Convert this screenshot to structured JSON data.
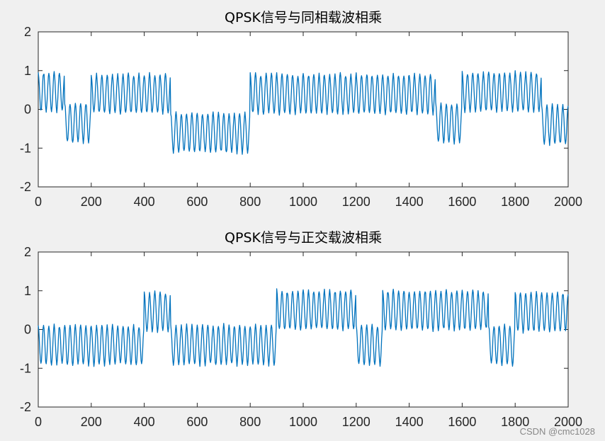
{
  "chart_data": [
    {
      "type": "line",
      "title": "QPSK信号与同相载波相乘",
      "xlabel": "",
      "ylabel": "",
      "xlim": [
        0,
        2000
      ],
      "ylim": [
        -2,
        2
      ],
      "xticks": [
        0,
        200,
        400,
        600,
        800,
        1000,
        1200,
        1400,
        1600,
        1800,
        2000
      ],
      "yticks": [
        -2,
        -1,
        0,
        1,
        2
      ],
      "grid": false,
      "series_color": "#0072BD",
      "oscillation_period_samples": 20,
      "oscillation_amplitude": 0.5,
      "segments": [
        {
          "x_start": 0,
          "x_end": 100,
          "level": 0.45
        },
        {
          "x_start": 100,
          "x_end": 200,
          "level": -0.35
        },
        {
          "x_start": 200,
          "x_end": 500,
          "level": 0.4
        },
        {
          "x_start": 500,
          "x_end": 800,
          "level": -0.6
        },
        {
          "x_start": 800,
          "x_end": 1500,
          "level": 0.4
        },
        {
          "x_start": 1500,
          "x_end": 1600,
          "level": -0.35
        },
        {
          "x_start": 1600,
          "x_end": 1900,
          "level": 0.45
        },
        {
          "x_start": 1900,
          "x_end": 2000,
          "level": -0.4
        }
      ]
    },
    {
      "type": "line",
      "title": "QPSK信号与正交载波相乘",
      "xlabel": "",
      "ylabel": "",
      "xlim": [
        0,
        2000
      ],
      "ylim": [
        -2,
        2
      ],
      "xticks": [
        0,
        200,
        400,
        600,
        800,
        1000,
        1200,
        1400,
        1600,
        1800,
        2000
      ],
      "yticks": [
        -2,
        -1,
        0,
        1,
        2
      ],
      "grid": false,
      "series_color": "#0072BD",
      "oscillation_period_samples": 20,
      "oscillation_amplitude": 0.5,
      "segments": [
        {
          "x_start": 0,
          "x_end": 400,
          "level": -0.4
        },
        {
          "x_start": 400,
          "x_end": 500,
          "level": 0.45
        },
        {
          "x_start": 500,
          "x_end": 900,
          "level": -0.4
        },
        {
          "x_start": 900,
          "x_end": 1200,
          "level": 0.5
        },
        {
          "x_start": 1200,
          "x_end": 1300,
          "level": -0.4
        },
        {
          "x_start": 1300,
          "x_end": 1700,
          "level": 0.5
        },
        {
          "x_start": 1700,
          "x_end": 1800,
          "level": -0.4
        },
        {
          "x_start": 1800,
          "x_end": 2000,
          "level": 0.45
        }
      ]
    }
  ],
  "watermark": "CSDN @cmc1028"
}
